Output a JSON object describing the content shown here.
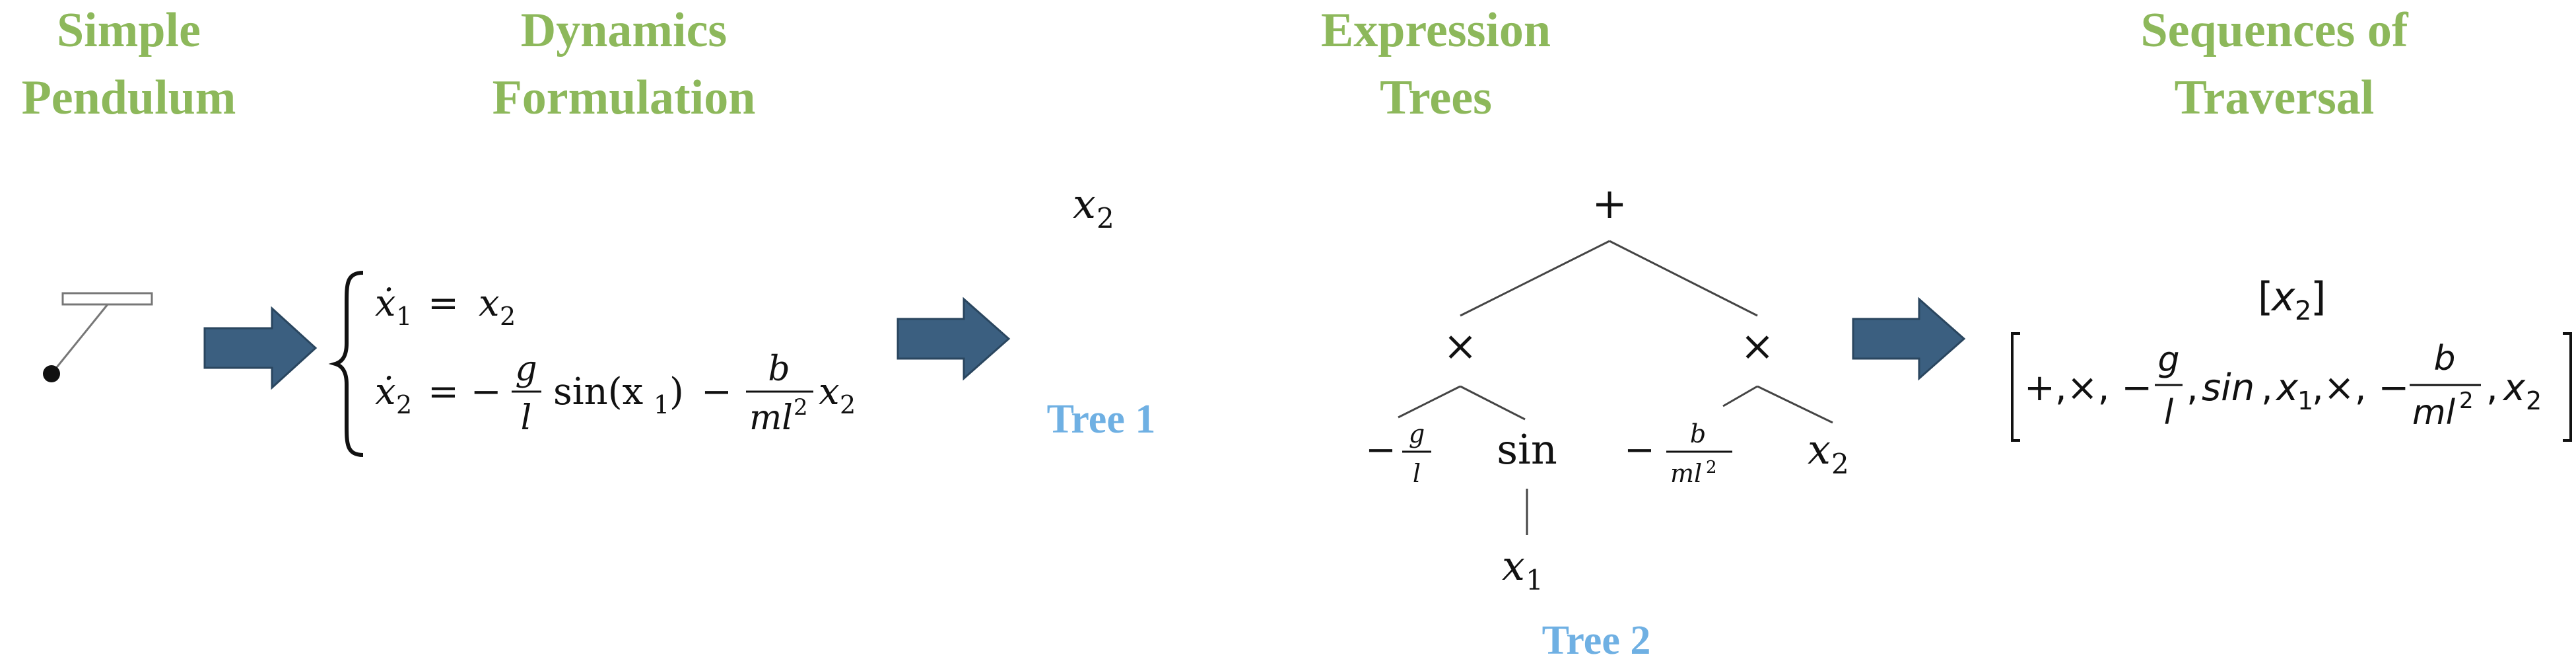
{
  "headers": {
    "simple_pendulum": [
      "Simple",
      "Pendulum"
    ],
    "dynamics_formulation": [
      "Dynamics",
      "Formulation"
    ],
    "expression_trees": [
      "Expression",
      "Trees"
    ],
    "sequences_of_traversal": [
      "Sequences of",
      "Traversal"
    ]
  },
  "equations": {
    "eq1": {
      "lhs": "ẋ",
      "lhs_sub": "1",
      "rel": "=",
      "rhs": "x",
      "rhs_sub": "2"
    },
    "eq2": {
      "lhs": "ẋ",
      "lhs_sub": "2",
      "rel": "= −",
      "frac1": {
        "num": "g",
        "den": "l"
      },
      "func": "sin(x",
      "func_sub": "1",
      "func_close": ")",
      "minus": "−",
      "frac2": {
        "num": "b",
        "den": "ml",
        "den_sup": "2"
      },
      "tail": "x",
      "tail_sub": "2"
    }
  },
  "tree1": {
    "root": "x",
    "root_sub": "2",
    "label": "Tree 1"
  },
  "tree2": {
    "label": "Tree 2",
    "root": "+",
    "left_op": "×",
    "right_op": "×",
    "neg": "−",
    "leaf_g_num": "g",
    "leaf_g_den": "l",
    "leaf_sin": "sin",
    "leaf_x1": "x",
    "leaf_x1_sub": "1",
    "leaf_b_num": "b",
    "leaf_b_den": "ml",
    "leaf_b_den_sup": "2",
    "leaf_x2": "x",
    "leaf_x2_sub": "2"
  },
  "sequences": {
    "seq1": {
      "open": "[",
      "x": "x",
      "sub": "2",
      "close": "]"
    },
    "seq2": {
      "open": "[",
      "part1": "+,×, −",
      "frac1": {
        "num": "g",
        "den": "l"
      },
      "part2": ", ",
      "sin": "sin",
      "part3": ", ",
      "x1": "x",
      "x1_sub": "1",
      "part4": ",×, −",
      "frac2": {
        "num": "b",
        "den": "ml",
        "den_sup": "2"
      },
      "part5": ", ",
      "x2": "x",
      "x2_sub": "2",
      "close": "]"
    }
  },
  "colors": {
    "header": "#8db85b",
    "tree_label": "#6fb0e3",
    "arrow_fill": "#3b5f80",
    "arrow_stroke": "#2a465f",
    "line": "#444444"
  }
}
